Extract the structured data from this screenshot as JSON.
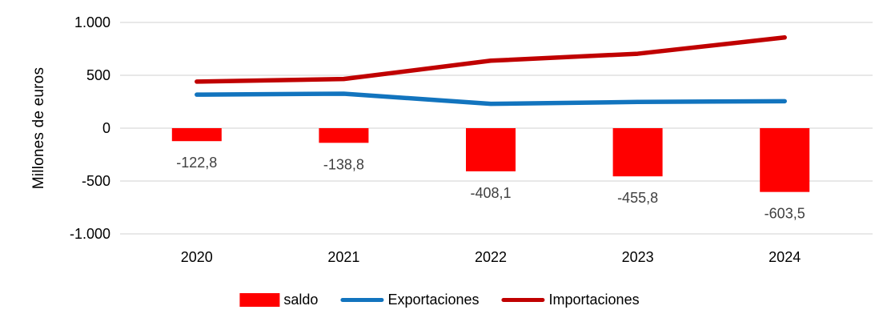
{
  "chart_data": {
    "type": "combo",
    "categories": [
      "2020",
      "2021",
      "2022",
      "2023",
      "2024"
    ],
    "series": [
      {
        "name": "saldo",
        "type": "bar",
        "color": "#FF0000",
        "values": [
          -122.8,
          -138.8,
          -408.1,
          -455.8,
          -603.5
        ],
        "labels": [
          "-122,8",
          "-138,8",
          "-408,1",
          "-455,8",
          "-603,5"
        ]
      },
      {
        "name": "Exportaciones",
        "type": "line",
        "color": "#1274BE",
        "values": [
          317,
          326,
          230,
          248,
          255
        ]
      },
      {
        "name": "Importaciones",
        "type": "line",
        "color": "#C00000",
        "values": [
          440,
          465,
          638,
          704,
          858
        ]
      }
    ],
    "title": "",
    "xlabel": "",
    "ylabel": "Millones de euros",
    "ylim": [
      -1000,
      1000
    ],
    "yticks": [
      {
        "value": 1000,
        "label": "1.000"
      },
      {
        "value": 500,
        "label": "500"
      },
      {
        "value": 0,
        "label": "0"
      },
      {
        "value": -500,
        "label": "-500"
      },
      {
        "value": -1000,
        "label": "-1.000"
      }
    ],
    "grid": true,
    "legend_position": "bottom"
  },
  "style": {
    "grid_color": "#D9D9D9",
    "data_label_color": "#404040",
    "axis_text_color": "#000000",
    "background": "#FFFFFF"
  }
}
